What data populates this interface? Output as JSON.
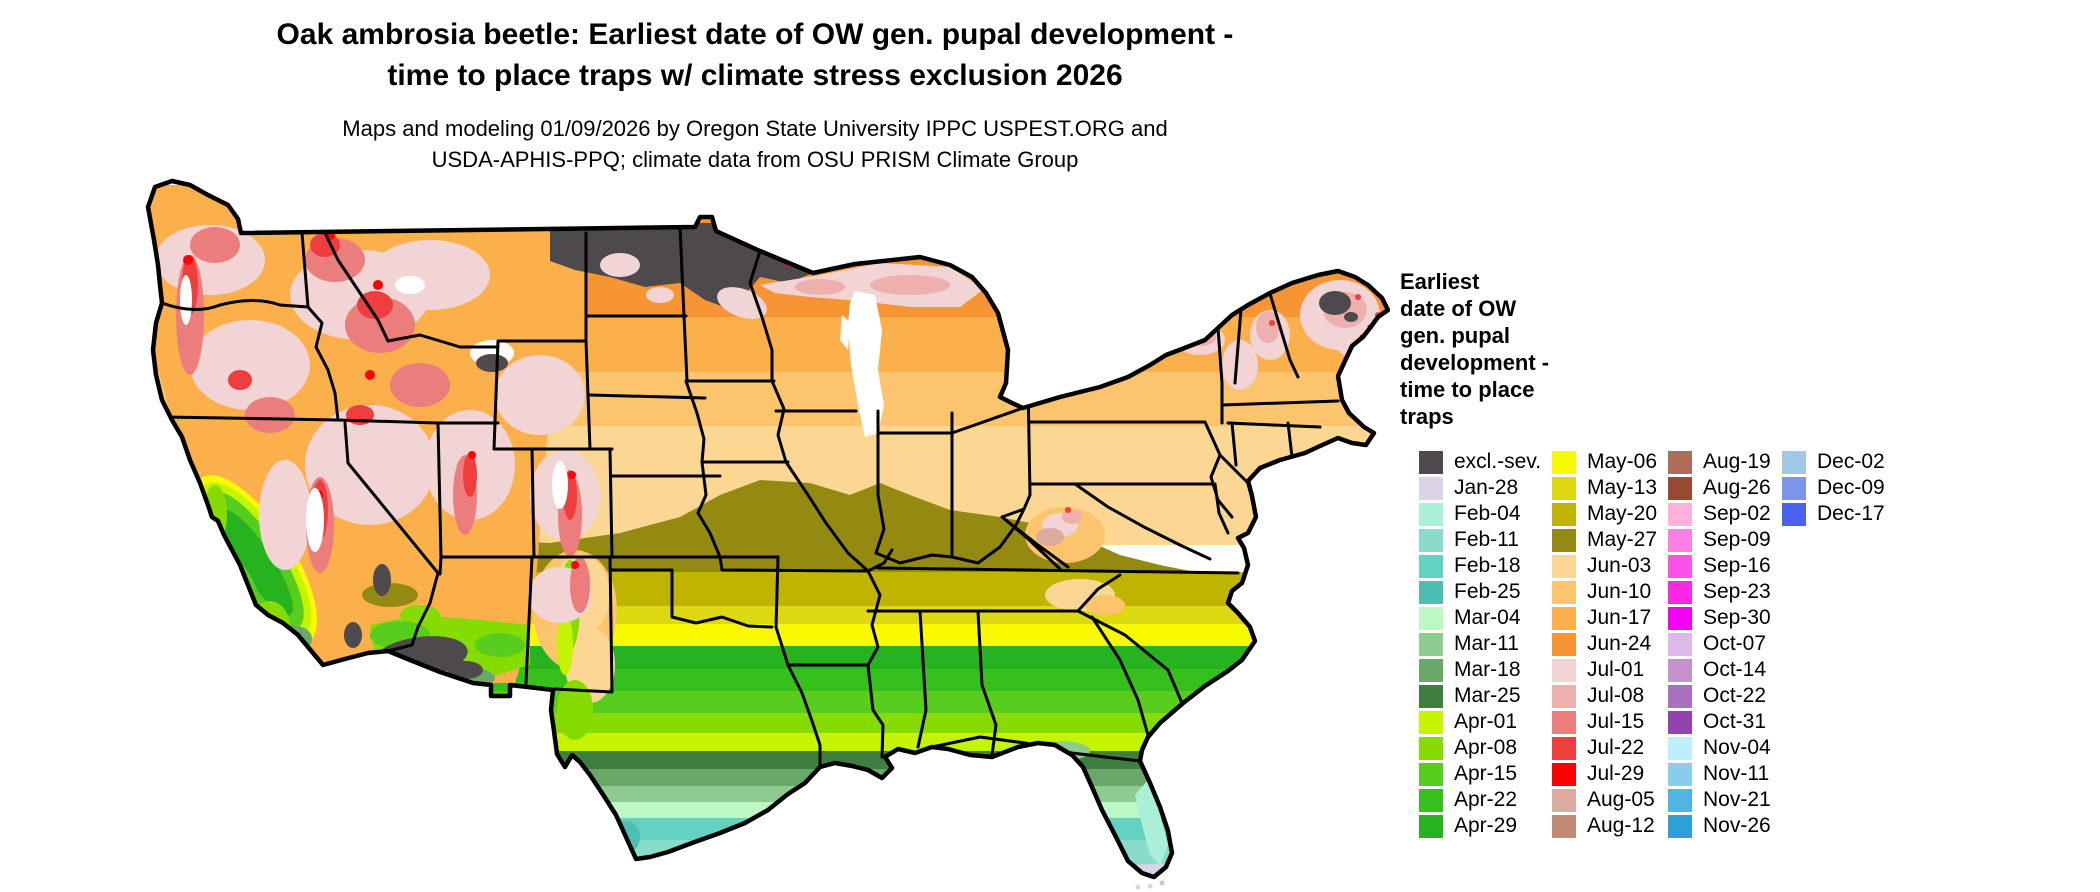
{
  "header": {
    "title": "Oak ambrosia beetle: Earliest date of OW gen. pupal development -\ntime to place traps w/ climate stress exclusion 2026",
    "subtitle": "Maps and modeling 01/09/2026 by Oregon State University IPPC USPEST.ORG and\nUSDA-APHIS-PPQ; climate data from OSU PRISM Climate Group"
  },
  "legend": {
    "title": "Earliest\ndate of OW\ngen. pupal\ndevelopment -\ntime to place\ntraps",
    "columns": [
      {
        "entries": [
          {
            "label": "excl.-sev.",
            "color": "#4d494d"
          },
          {
            "label": "Jan-28",
            "color": "#dbd3e8"
          },
          {
            "label": "Feb-04",
            "color": "#aaf0d8"
          },
          {
            "label": "Feb-11",
            "color": "#8adcca"
          },
          {
            "label": "Feb-18",
            "color": "#63d2c2"
          },
          {
            "label": "Feb-25",
            "color": "#4cbfb2"
          },
          {
            "label": "Mar-04",
            "color": "#bdf7c3"
          },
          {
            "label": "Mar-11",
            "color": "#8fcb90"
          },
          {
            "label": "Mar-18",
            "color": "#69a869"
          },
          {
            "label": "Mar-25",
            "color": "#3e7e41"
          },
          {
            "label": "Apr-01",
            "color": "#c5f400"
          },
          {
            "label": "Apr-08",
            "color": "#86dc00"
          },
          {
            "label": "Apr-15",
            "color": "#59cd1e"
          },
          {
            "label": "Apr-22",
            "color": "#36c01c"
          },
          {
            "label": "Apr-29",
            "color": "#26b31f"
          }
        ]
      },
      {
        "entries": [
          {
            "label": "May-06",
            "color": "#f9f900"
          },
          {
            "label": "May-13",
            "color": "#dcd911"
          },
          {
            "label": "May-20",
            "color": "#bfb400"
          },
          {
            "label": "May-27",
            "color": "#948a11"
          },
          {
            "label": "Jun-03",
            "color": "#fbd793"
          },
          {
            "label": "Jun-10",
            "color": "#fcc46c"
          },
          {
            "label": "Jun-17",
            "color": "#fbb04b"
          },
          {
            "label": "Jun-24",
            "color": "#f79434"
          },
          {
            "label": "Jul-01",
            "color": "#f2d4d4"
          },
          {
            "label": "Jul-08",
            "color": "#eeafaf"
          },
          {
            "label": "Jul-15",
            "color": "#ec7d7d"
          },
          {
            "label": "Jul-22",
            "color": "#ee3e3e"
          },
          {
            "label": "Jul-29",
            "color": "#fb0200"
          },
          {
            "label": "Aug-05",
            "color": "#dcab9f"
          },
          {
            "label": "Aug-12",
            "color": "#c18a77"
          }
        ]
      },
      {
        "entries": [
          {
            "label": "Aug-19",
            "color": "#b16b5b"
          },
          {
            "label": "Aug-26",
            "color": "#9b4832"
          },
          {
            "label": "Sep-02",
            "color": "#fdb3dc"
          },
          {
            "label": "Sep-09",
            "color": "#fb80e3"
          },
          {
            "label": "Sep-16",
            "color": "#fb53ea"
          },
          {
            "label": "Sep-23",
            "color": "#f928e3"
          },
          {
            "label": "Sep-30",
            "color": "#f202f2"
          },
          {
            "label": "Oct-07",
            "color": "#dcb9e8"
          },
          {
            "label": "Oct-14",
            "color": "#c493cd"
          },
          {
            "label": "Oct-22",
            "color": "#a96fc0"
          },
          {
            "label": "Oct-31",
            "color": "#9343ae"
          },
          {
            "label": "Nov-04",
            "color": "#bfeffc"
          },
          {
            "label": "Nov-11",
            "color": "#88cdea"
          },
          {
            "label": "Nov-21",
            "color": "#51b5e3"
          },
          {
            "label": "Nov-26",
            "color": "#2da0d6"
          }
        ]
      },
      {
        "entries": [
          {
            "label": "Dec-02",
            "color": "#a2c8e8"
          },
          {
            "label": "Dec-09",
            "color": "#7b95ea"
          },
          {
            "label": "Dec-17",
            "color": "#4a62f0"
          }
        ]
      }
    ]
  }
}
